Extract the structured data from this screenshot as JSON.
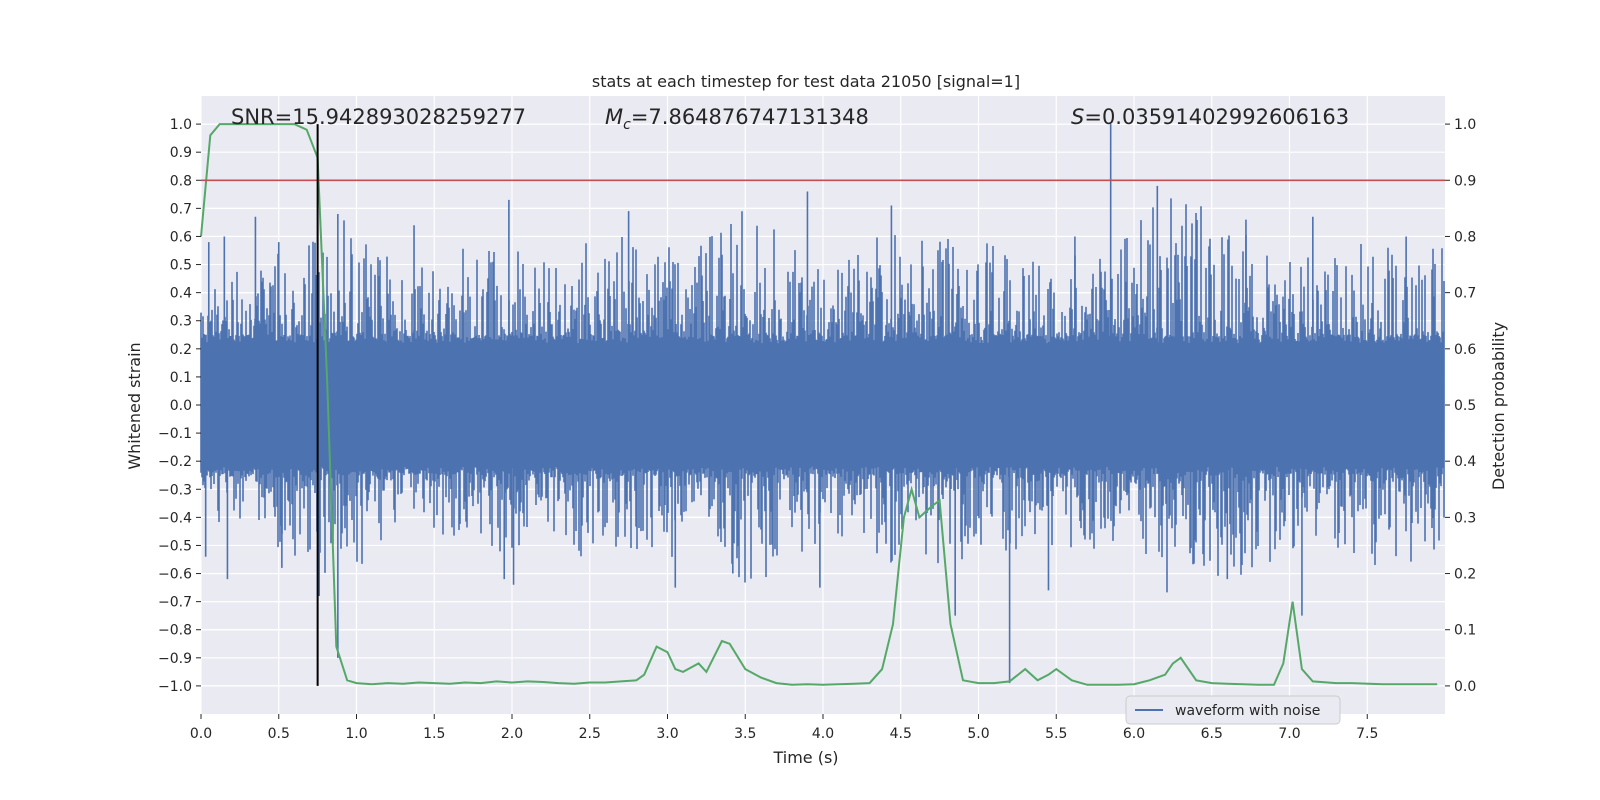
{
  "chart_data": {
    "type": "line",
    "title": "stats at each timestep for test data 21050 [signal=1]",
    "xlabel": "Time (s)",
    "ylabel": "Whitened strain",
    "ylabel_right": "Detection probability",
    "xlim": [
      0.0,
      8.0
    ],
    "ylim": [
      -1.1,
      1.1
    ],
    "ylim_right": [
      -0.05,
      1.05
    ],
    "x_ticks": [
      "0.0",
      "0.5",
      "1.0",
      "1.5",
      "2.0",
      "2.5",
      "3.0",
      "3.5",
      "4.0",
      "4.5",
      "5.0",
      "5.5",
      "6.0",
      "6.5",
      "7.0",
      "7.5"
    ],
    "y_ticks": [
      "1.0",
      "0.9",
      "0.8",
      "0.7",
      "0.6",
      "0.5",
      "0.4",
      "0.3",
      "0.2",
      "0.1",
      "0.0",
      "−0.1",
      "−0.2",
      "−0.3",
      "−0.4",
      "−0.5",
      "−0.6",
      "−0.7",
      "−0.8",
      "−0.9",
      "−1.0"
    ],
    "y_ticks_right": [
      "1.0",
      "0.9",
      "0.8",
      "0.7",
      "0.6",
      "0.5",
      "0.4",
      "0.3",
      "0.2",
      "0.1",
      "0.0"
    ],
    "grid": true,
    "annotations": {
      "snr": "SNR=15.942893028259277",
      "mc_symbol": "M",
      "mc_sub": "c",
      "mc_value": "=7.864876747131348",
      "s_symbol": "S",
      "s_value": "=0.03591402992606163"
    },
    "threshold_right": 0.9,
    "marker_time": 0.75,
    "colors": {
      "waveform": "#4c72b0",
      "probability": "#55a868",
      "threshold": "#c44e52",
      "marker": "#000000",
      "background": "#eaeaf2"
    },
    "series": [
      {
        "name": "waveform with noise",
        "axis": "left",
        "style": "dense-noise",
        "envelope": [
          0.0,
          0.42,
          0.75,
          0.2,
          0.52,
          0.32,
          0.58,
          0.45,
          0.88,
          0.25,
          0.62,
          0.6,
          0.3,
          0.4,
          1.0,
          0.78,
          0.35,
          0.55,
          0.45
        ],
        "spikes": [
          {
            "x": 0.05,
            "y": 0.58
          },
          {
            "x": 0.15,
            "y": 0.6
          },
          {
            "x": 0.35,
            "y": 0.67
          },
          {
            "x": 0.5,
            "y": 0.58
          },
          {
            "x": 0.88,
            "y": 0.68
          },
          {
            "x": 1.37,
            "y": 0.64
          },
          {
            "x": 1.98,
            "y": 0.73
          },
          {
            "x": 2.75,
            "y": 0.69
          },
          {
            "x": 3.9,
            "y": 0.76
          },
          {
            "x": 4.44,
            "y": 0.71
          },
          {
            "x": 5.62,
            "y": 0.6
          },
          {
            "x": 5.85,
            "y": 1.0
          },
          {
            "x": 6.15,
            "y": 0.78
          },
          {
            "x": 6.72,
            "y": 0.66
          },
          {
            "x": 7.15,
            "y": 0.67
          },
          {
            "x": 7.75,
            "y": 0.6
          },
          {
            "x": 0.03,
            "y": -0.54
          },
          {
            "x": 0.17,
            "y": -0.62
          },
          {
            "x": 0.52,
            "y": -0.58
          },
          {
            "x": 0.76,
            "y": -0.68
          },
          {
            "x": 0.88,
            "y": -0.9
          },
          {
            "x": 1.95,
            "y": -0.62
          },
          {
            "x": 2.01,
            "y": -0.64
          },
          {
            "x": 3.05,
            "y": -0.65
          },
          {
            "x": 3.42,
            "y": -0.6
          },
          {
            "x": 3.98,
            "y": -0.65
          },
          {
            "x": 4.85,
            "y": -0.75
          },
          {
            "x": 5.2,
            "y": -0.99
          },
          {
            "x": 5.45,
            "y": -0.66
          },
          {
            "x": 6.6,
            "y": -0.62
          },
          {
            "x": 7.08,
            "y": -0.75
          }
        ]
      },
      {
        "name": "",
        "axis": "right",
        "x": [
          0.0,
          0.06,
          0.12,
          0.2,
          0.3,
          0.4,
          0.5,
          0.6,
          0.68,
          0.75,
          0.81,
          0.87,
          0.94,
          1.0,
          1.1,
          1.2,
          1.3,
          1.4,
          1.5,
          1.6,
          1.7,
          1.8,
          1.9,
          2.0,
          2.1,
          2.2,
          2.3,
          2.4,
          2.5,
          2.6,
          2.7,
          2.8,
          2.85,
          2.93,
          3.0,
          3.05,
          3.1,
          3.2,
          3.25,
          3.35,
          3.4,
          3.5,
          3.6,
          3.7,
          3.8,
          3.9,
          4.0,
          4.1,
          4.2,
          4.3,
          4.38,
          4.45,
          4.52,
          4.57,
          4.62,
          4.7,
          4.75,
          4.82,
          4.9,
          5.0,
          5.1,
          5.2,
          5.3,
          5.38,
          5.45,
          5.5,
          5.6,
          5.7,
          5.8,
          5.9,
          6.0,
          6.1,
          6.2,
          6.25,
          6.3,
          6.4,
          6.5,
          6.6,
          6.7,
          6.8,
          6.9,
          6.96,
          7.02,
          7.08,
          7.15,
          7.3,
          7.4,
          7.6,
          7.95
        ],
        "y": [
          0.8,
          0.98,
          1.0,
          1.0,
          1.0,
          1.0,
          1.0,
          1.0,
          0.99,
          0.94,
          0.55,
          0.07,
          0.01,
          0.005,
          0.003,
          0.005,
          0.004,
          0.006,
          0.005,
          0.004,
          0.006,
          0.005,
          0.008,
          0.006,
          0.008,
          0.007,
          0.005,
          0.004,
          0.006,
          0.006,
          0.008,
          0.01,
          0.02,
          0.07,
          0.06,
          0.03,
          0.025,
          0.04,
          0.025,
          0.08,
          0.075,
          0.03,
          0.015,
          0.005,
          0.002,
          0.003,
          0.002,
          0.003,
          0.004,
          0.005,
          0.03,
          0.11,
          0.3,
          0.35,
          0.3,
          0.32,
          0.33,
          0.11,
          0.01,
          0.005,
          0.005,
          0.008,
          0.03,
          0.01,
          0.02,
          0.03,
          0.01,
          0.002,
          0.002,
          0.002,
          0.003,
          0.01,
          0.02,
          0.04,
          0.05,
          0.01,
          0.005,
          0.004,
          0.003,
          0.002,
          0.002,
          0.04,
          0.15,
          0.03,
          0.008,
          0.005,
          0.005,
          0.003,
          0.003
        ]
      }
    ],
    "legend": {
      "placement": "lower-right",
      "entries": [
        "waveform with noise"
      ]
    }
  }
}
